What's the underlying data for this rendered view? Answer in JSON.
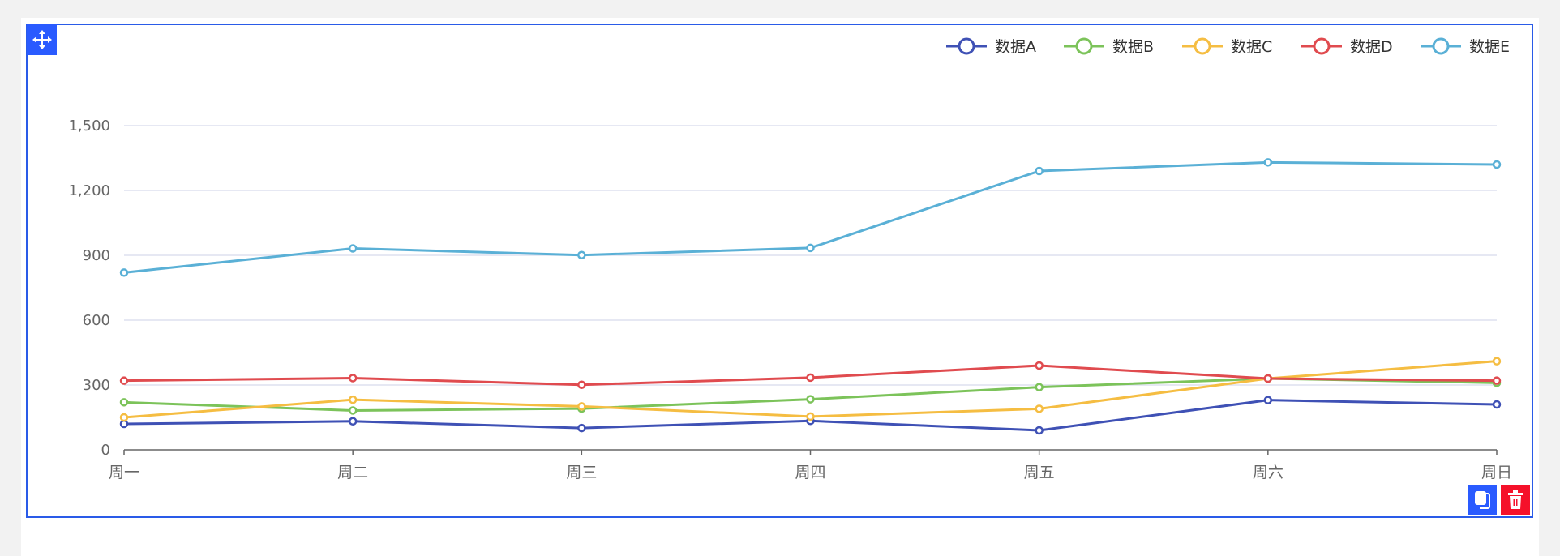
{
  "chart_data": {
    "type": "line",
    "categories": [
      "周一",
      "周二",
      "周三",
      "周四",
      "周五",
      "周六",
      "周日"
    ],
    "series": [
      {
        "name": "数据A",
        "color": "#3f51b5",
        "values": [
          120,
          132,
          101,
          134,
          90,
          230,
          210
        ]
      },
      {
        "name": "数据B",
        "color": "#7cc35a",
        "values": [
          220,
          182,
          191,
          234,
          290,
          330,
          310
        ]
      },
      {
        "name": "数据C",
        "color": "#f5bd42",
        "values": [
          150,
          232,
          201,
          154,
          190,
          330,
          410
        ]
      },
      {
        "name": "数据D",
        "color": "#e04b4f",
        "values": [
          320,
          332,
          301,
          334,
          390,
          330,
          320
        ]
      },
      {
        "name": "数据E",
        "color": "#5ab0d6",
        "values": [
          820,
          932,
          901,
          934,
          1290,
          1330,
          1320
        ]
      }
    ],
    "yticks": [
      "0",
      "300",
      "600",
      "900",
      "1,200",
      "1,500"
    ],
    "ylim": [
      0,
      1500
    ],
    "grid": true,
    "legend": "top-right"
  },
  "toolbar": {
    "move_icon": "move-arrows-icon",
    "copy_icon": "copy-icon",
    "delete_icon": "trash-icon"
  }
}
